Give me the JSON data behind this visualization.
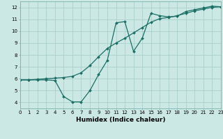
{
  "xlabel": "Humidex (Indice chaleur)",
  "background_color": "#cce8e4",
  "grid_color": "#aacfcb",
  "line_color": "#1a6e65",
  "x_values": [
    0,
    1,
    2,
    3,
    4,
    5,
    6,
    7,
    8,
    9,
    10,
    11,
    12,
    13,
    14,
    15,
    16,
    17,
    18,
    19,
    20,
    21,
    22,
    23
  ],
  "line1_y": [
    5.9,
    5.9,
    5.9,
    5.9,
    5.85,
    4.5,
    4.05,
    4.05,
    5.0,
    6.35,
    7.55,
    10.7,
    10.8,
    8.3,
    9.4,
    11.5,
    11.3,
    11.2,
    11.25,
    11.65,
    11.8,
    11.95,
    12.1,
    12.05
  ],
  "line2_y": [
    5.9,
    5.9,
    5.95,
    6.0,
    6.05,
    6.1,
    6.2,
    6.5,
    7.1,
    7.85,
    8.55,
    9.0,
    9.4,
    9.85,
    10.3,
    10.75,
    11.05,
    11.15,
    11.3,
    11.5,
    11.7,
    11.85,
    12.0,
    12.05
  ],
  "xlim": [
    0,
    23
  ],
  "ylim": [
    3.5,
    12.5
  ],
  "yticks": [
    4,
    5,
    6,
    7,
    8,
    9,
    10,
    11,
    12
  ],
  "xticks": [
    0,
    1,
    2,
    3,
    4,
    5,
    6,
    7,
    8,
    9,
    10,
    11,
    12,
    13,
    14,
    15,
    16,
    17,
    18,
    19,
    20,
    21,
    22,
    23
  ],
  "tick_fontsize": 5.0,
  "xlabel_fontsize": 6.5,
  "linewidth": 0.9,
  "markersize": 2.0
}
